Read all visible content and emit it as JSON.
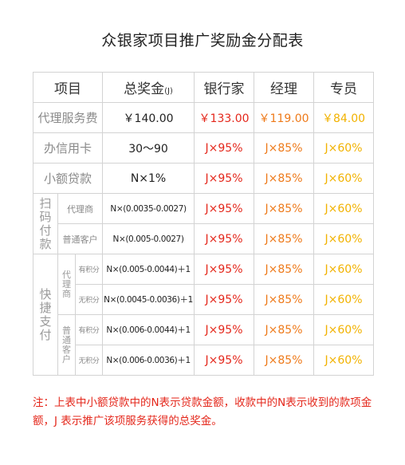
{
  "title": "众银家项目推广奖励金分配表",
  "headers": {
    "item": "项目",
    "total": "总奖金",
    "total_unit": "(J)",
    "bank": "银行家",
    "manager": "经理",
    "specialist": "专员"
  },
  "rows": {
    "agency_fee": {
      "label": "代理服务费",
      "total": "￥140.00",
      "bank": "￥133.00",
      "manager": "￥119.00",
      "specialist": "￥84.00"
    },
    "credit_card": {
      "label": "办信用卡",
      "total": "30～90",
      "bank": "J×95%",
      "manager": "J×85%",
      "specialist": "J×60%"
    },
    "micro_loan": {
      "label": "小额贷款",
      "total": "N×1%",
      "bank": "J×95%",
      "manager": "J×85%",
      "specialist": "J×60%"
    }
  },
  "scan_pay": {
    "label": "扫码付款",
    "agent": {
      "label": "代理商",
      "total": "N×(0.0035-0.0027)",
      "bank": "J×95%",
      "manager": "J×85%",
      "specialist": "J×60%"
    },
    "regular": {
      "label": "普通客户",
      "total": "N×(0.005-0.0027)",
      "bank": "J×95%",
      "manager": "J×85%",
      "specialist": "J×60%"
    }
  },
  "quick_pay": {
    "label": "快捷支付",
    "agent_label": "代理商",
    "regular_label": "普通客户",
    "rows": [
      {
        "tag": "有积分",
        "total": "N×(0.005-0.0044)＋1",
        "bank": "J×95%",
        "manager": "J×85%",
        "specialist": "J×60%"
      },
      {
        "tag": "无积分",
        "total": "N×(0.0045-0.0036)＋1",
        "bank": "J×95%",
        "manager": "J×85%",
        "specialist": "J×60%"
      },
      {
        "tag": "有积分",
        "total": "N×(0.006-0.0044)＋1",
        "bank": "J×95%",
        "manager": "J×85%",
        "specialist": "J×60%"
      },
      {
        "tag": "无积分",
        "total": "N×(0.006-0.0036)＋1",
        "bank": "J×95%",
        "manager": "J×85%",
        "specialist": "J×60%"
      }
    ]
  },
  "note": "注：上表中小额贷款中的N表示贷款金额，收款中的N表示收到的款项金额，J 表示推广该项服务获得的总奖金。",
  "colors": {
    "red": "#e4271b",
    "orange": "#ee7a1a",
    "yellow": "#f2b200"
  }
}
